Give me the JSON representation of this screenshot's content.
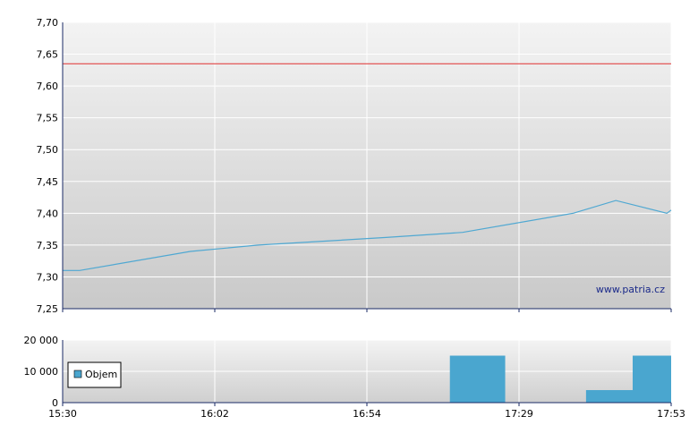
{
  "chart_data": [
    {
      "type": "line",
      "title": "",
      "xlabel": "",
      "ylabel": "",
      "x_ticks": [
        "15:30",
        "16:02",
        "16:54",
        "17:29",
        "17:53"
      ],
      "ylim": [
        7.25,
        7.7
      ],
      "y_ticks": [
        "7,70",
        "7,65",
        "7,60",
        "7,55",
        "7,50",
        "7,45",
        "7,40",
        "7,35",
        "7,30",
        "7,25"
      ],
      "grid": true,
      "reference_line": {
        "value": 7.635,
        "color": "#e03030"
      },
      "series": [
        {
          "name": "",
          "color": "#4fa8d2",
          "points": [
            [
              "15:30",
              7.31
            ],
            [
              "15:34",
              7.31
            ],
            [
              "16:00",
              7.34
            ],
            [
              "16:16",
              7.35
            ],
            [
              "16:46",
              7.362
            ],
            [
              "17:04",
              7.37
            ],
            [
              "17:30",
              7.4
            ],
            [
              "17:40",
              7.42
            ],
            [
              "17:52",
              7.4
            ],
            [
              "17:53",
              7.405
            ]
          ]
        }
      ],
      "watermark": "www.patria.cz"
    },
    {
      "type": "bar",
      "title": "",
      "xlabel": "",
      "ylabel": "",
      "ylim": [
        0,
        20000
      ],
      "y_ticks": [
        "20 000",
        "10 000",
        "0"
      ],
      "grid": true,
      "legend": {
        "placement": "left",
        "entries": [
          {
            "name": "Objem",
            "color": "#4aa6cf"
          }
        ]
      },
      "bars": [
        {
          "from": "17:01",
          "to": "17:14",
          "value": 15000
        },
        {
          "from": "17:33",
          "to": "17:46",
          "value": 4000
        },
        {
          "from": "17:53",
          "to": "17:53",
          "value": 15000
        }
      ]
    }
  ]
}
